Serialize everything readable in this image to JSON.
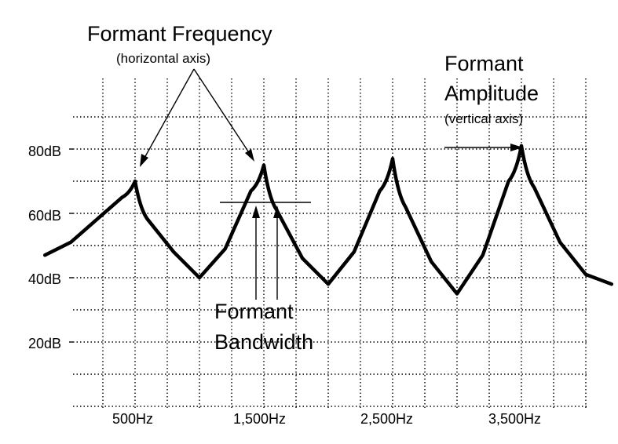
{
  "labels": {
    "formant_frequency": "Formant Frequency",
    "formant_frequency_note": "(horizontal axis)",
    "formant_amplitude_line1": "Formant",
    "formant_amplitude_line2": "Amplitude",
    "formant_amplitude_note": "(vertical axis)",
    "formant_bandwidth_line1": "Formant",
    "formant_bandwidth_line2": "Bandwidth"
  },
  "y_ticks": [
    "80dB",
    "60dB",
    "40dB",
    "20dB"
  ],
  "x_ticks": [
    "500Hz",
    "1,500Hz",
    "2,500Hz",
    "3,500Hz"
  ],
  "chart_data": {
    "type": "line",
    "x_unit": "Hz",
    "y_unit": "dB",
    "xlim": [
      -200,
      4500
    ],
    "ylim": [
      0,
      100
    ],
    "y_tick_values": [
      80,
      60,
      40,
      20
    ],
    "x_tick_values": [
      500,
      1500,
      2500,
      3500
    ],
    "curve": [
      [
        -200,
        47
      ],
      [
        0,
        51
      ],
      [
        200,
        58
      ],
      [
        400,
        65
      ],
      [
        500,
        70
      ],
      [
        600,
        58
      ],
      [
        800,
        48
      ],
      [
        1000,
        40
      ],
      [
        1200,
        49
      ],
      [
        1400,
        67
      ],
      [
        1500,
        75
      ],
      [
        1600,
        61
      ],
      [
        1800,
        46
      ],
      [
        2000,
        38
      ],
      [
        2200,
        48
      ],
      [
        2400,
        67
      ],
      [
        2500,
        77
      ],
      [
        2600,
        62
      ],
      [
        2800,
        45
      ],
      [
        3000,
        35
      ],
      [
        3200,
        47
      ],
      [
        3400,
        70
      ],
      [
        3500,
        81
      ],
      [
        3600,
        68
      ],
      [
        3800,
        51
      ],
      [
        4000,
        41
      ],
      [
        4200,
        38
      ]
    ],
    "peaks_hz": [
      500,
      1500,
      2500,
      3500
    ],
    "bandwidth_marker_db": 64
  }
}
